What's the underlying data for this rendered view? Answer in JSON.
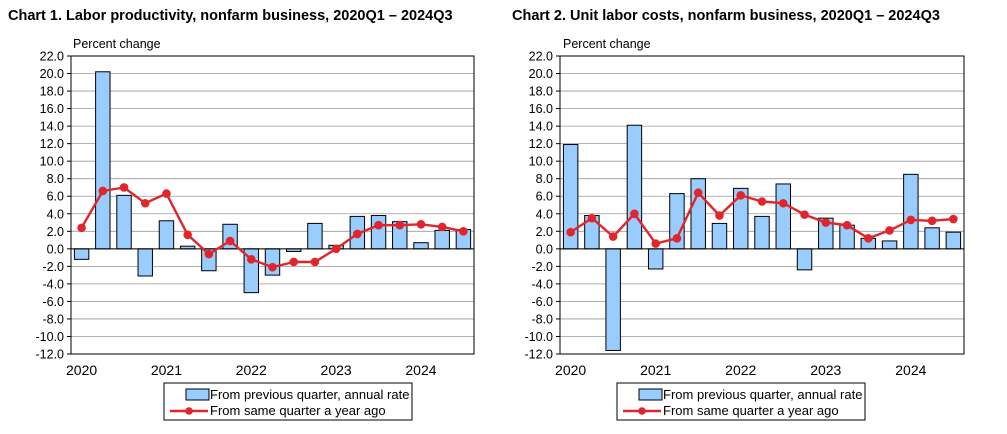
{
  "chart_data": [
    {
      "id": "chart1",
      "type": "bar",
      "title": "Chart  1. Labor productivity, nonfarm business, 2020Q1 – 2024Q3",
      "ylabel": "Percent change",
      "xlabel": "",
      "ylim": [
        -12,
        22
      ],
      "yticks": [
        22,
        20,
        18,
        16,
        14,
        12,
        10,
        8,
        6,
        4,
        2,
        0,
        -2,
        -4,
        -6,
        -8,
        -10,
        -12
      ],
      "ytick_labels": [
        "22.0",
        "20.0",
        "18.0",
        "16.0",
        "14.0",
        "12.0",
        "10.0",
        "8.0",
        "6.0",
        "4.0",
        "2.0",
        "0.0",
        "-2.0",
        "-4.0",
        "-6.0",
        "-8.0",
        "-10.0",
        "-12.0"
      ],
      "grid": true,
      "years": [
        "2020",
        "2021",
        "2022",
        "2023",
        "2024"
      ],
      "categories": [
        "2020Q1",
        "2020Q2",
        "2020Q3",
        "2020Q4",
        "2021Q1",
        "2021Q2",
        "2021Q3",
        "2021Q4",
        "2022Q1",
        "2022Q2",
        "2022Q3",
        "2022Q4",
        "2023Q1",
        "2023Q2",
        "2023Q3",
        "2023Q4",
        "2024Q1",
        "2024Q2",
        "2024Q3"
      ],
      "series": [
        {
          "name": "From previous quarter, annual rate",
          "kind": "bar",
          "color": "#99ccff",
          "values": [
            -1.2,
            20.2,
            6.1,
            -3.1,
            3.2,
            0.3,
            -2.5,
            2.8,
            -5.0,
            -3.0,
            -0.3,
            2.9,
            0.4,
            3.7,
            3.8,
            3.1,
            0.7,
            2.1,
            2.2
          ]
        },
        {
          "name": "From same quarter a year ago",
          "kind": "line",
          "color": "#e0262b",
          "values": [
            2.4,
            6.6,
            7.0,
            5.2,
            6.3,
            1.6,
            -0.6,
            0.9,
            -1.2,
            -2.1,
            -1.5,
            -1.5,
            0.0,
            1.7,
            2.7,
            2.7,
            2.8,
            2.5,
            2.0
          ]
        }
      ],
      "legend": "bottom-center"
    },
    {
      "id": "chart2",
      "type": "bar",
      "title": "Chart  2. Unit labor costs, nonfarm business, 2020Q1 – 2024Q3",
      "ylabel": "Percent change",
      "xlabel": "",
      "ylim": [
        -12,
        22
      ],
      "yticks": [
        22,
        20,
        18,
        16,
        14,
        12,
        10,
        8,
        6,
        4,
        2,
        0,
        -2,
        -4,
        -6,
        -8,
        -10,
        -12
      ],
      "ytick_labels": [
        "22.0",
        "20.0",
        "18.0",
        "16.0",
        "14.0",
        "12.0",
        "10.0",
        "8.0",
        "6.0",
        "4.0",
        "2.0",
        "0.0",
        "-2.0",
        "-4.0",
        "-6.0",
        "-8.0",
        "-10.0",
        "-12.0"
      ],
      "grid": true,
      "years": [
        "2020",
        "2021",
        "2022",
        "2023",
        "2024"
      ],
      "categories": [
        "2020Q1",
        "2020Q2",
        "2020Q3",
        "2020Q4",
        "2021Q1",
        "2021Q2",
        "2021Q3",
        "2021Q4",
        "2022Q1",
        "2022Q2",
        "2022Q3",
        "2022Q4",
        "2023Q1",
        "2023Q2",
        "2023Q3",
        "2023Q4",
        "2024Q1",
        "2024Q2",
        "2024Q3"
      ],
      "series": [
        {
          "name": "From previous quarter, annual rate",
          "kind": "bar",
          "color": "#99ccff",
          "values": [
            11.9,
            3.8,
            -11.6,
            14.1,
            -2.3,
            6.3,
            8.0,
            2.9,
            6.9,
            3.7,
            7.4,
            -2.4,
            3.5,
            2.7,
            1.2,
            0.9,
            8.5,
            2.4,
            1.9
          ]
        },
        {
          "name": "From same quarter a year ago",
          "kind": "line",
          "color": "#e0262b",
          "values": [
            1.9,
            3.5,
            1.4,
            4.0,
            0.6,
            1.2,
            6.4,
            3.8,
            6.1,
            5.4,
            5.2,
            3.9,
            3.0,
            2.7,
            1.2,
            2.1,
            3.3,
            3.2,
            3.4
          ]
        }
      ],
      "legend": "bottom-center"
    }
  ]
}
